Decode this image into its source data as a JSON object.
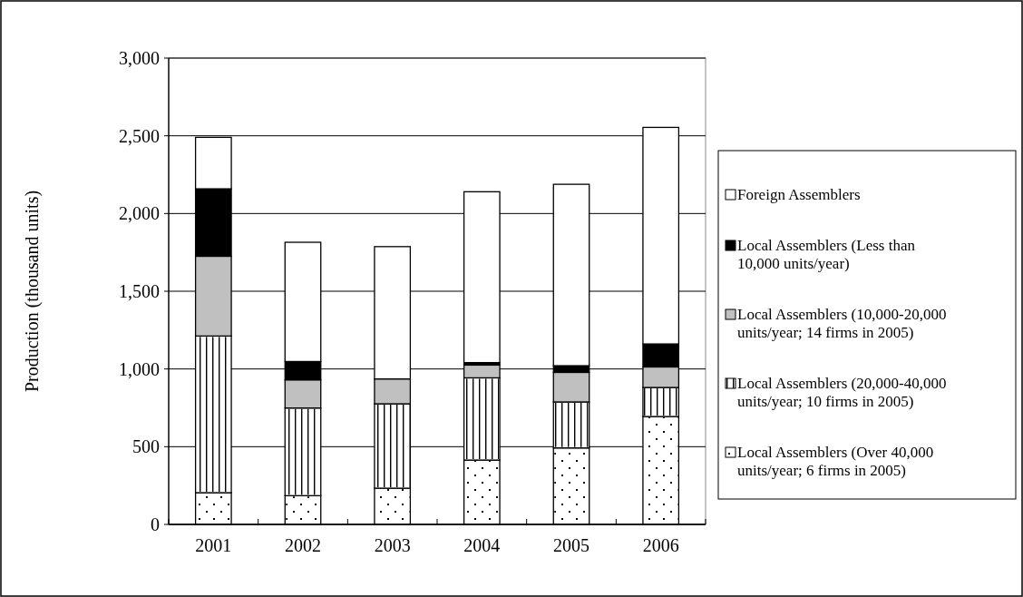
{
  "chart_data": {
    "type": "bar",
    "stacked": true,
    "ylabel": "Production (thousand units)",
    "categories": [
      "2001",
      "2002",
      "2003",
      "2004",
      "2005",
      "2006"
    ],
    "series": [
      {
        "name": "Local Assemblers (Over 40,000 units/year; 6 firms in 2005)",
        "color": "#ffffff",
        "values": [
          204,
          185,
          233,
          414,
          492,
          694
        ]
      },
      {
        "name": "Local Assemblers (20,000-40,000 units/year; 10 firms in 2005)",
        "color": "#ffffff",
        "values": [
          1008,
          564,
          543,
          529,
          296,
          187
        ]
      },
      {
        "name": "Local Assemblers (10,000-20,000 units/year; 14 firms in 2005)",
        "color": "#c0c0c0",
        "values": [
          513,
          181,
          160,
          82,
          190,
          132
        ]
      },
      {
        "name": "Local Assemblers (Less than 10,000 units/year)",
        "color": "#000000",
        "values": [
          434,
          118,
          0,
          16,
          43,
          148
        ]
      },
      {
        "name": "Foreign Assemblers",
        "color": "#ffffff",
        "values": [
          331,
          767,
          851,
          1099,
          1167,
          1393
        ]
      }
    ],
    "ylim": [
      0,
      3000
    ],
    "yticks": [
      {
        "value": 0,
        "label": "0"
      },
      {
        "value": 500,
        "label": "500"
      },
      {
        "value": 1000,
        "label": "1,000"
      },
      {
        "value": 1500,
        "label": "1,500"
      },
      {
        "value": 2000,
        "label": "2,000"
      },
      {
        "value": 2500,
        "label": "2,500"
      },
      {
        "value": 3000,
        "label": "3,000"
      }
    ],
    "grid": "y",
    "legend": "right"
  }
}
